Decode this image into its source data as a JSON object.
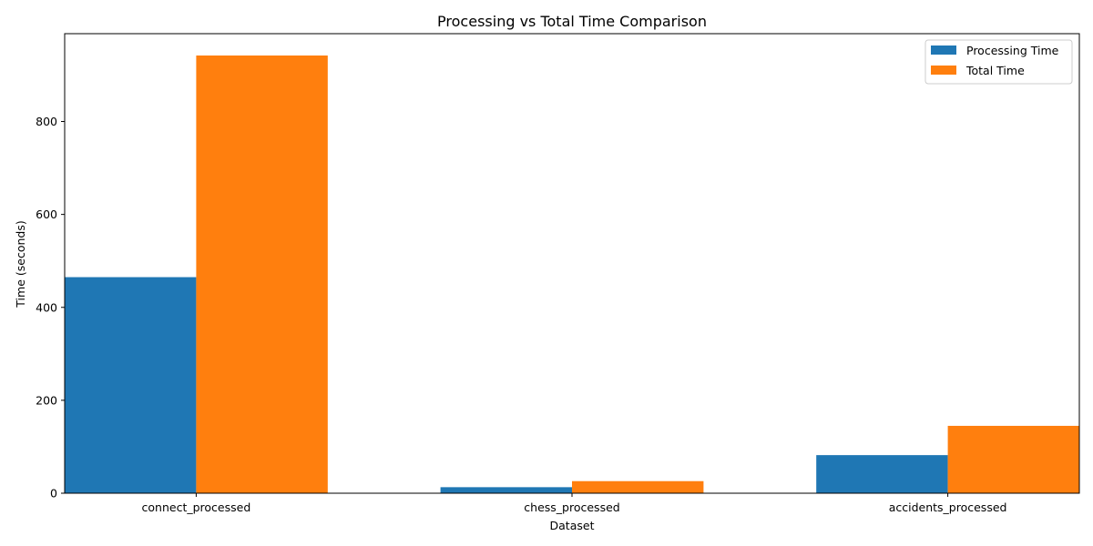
{
  "chart_data": {
    "type": "bar",
    "title": "Processing vs Total Time Comparison",
    "xlabel": "Dataset",
    "ylabel": "Time (seconds)",
    "categories": [
      "connect_processed",
      "chess_processed",
      "accidents_processed"
    ],
    "series": [
      {
        "name": "Processing Time",
        "color": "#1f77b4",
        "values": [
          465,
          13,
          82
        ]
      },
      {
        "name": "Total Time",
        "color": "#ff7f0e",
        "values": [
          942,
          26,
          145
        ]
      }
    ],
    "ylim": [
      0,
      989
    ],
    "yticks": [
      0,
      200,
      400,
      600,
      800
    ],
    "grid": false,
    "legend_position": "top-right"
  }
}
